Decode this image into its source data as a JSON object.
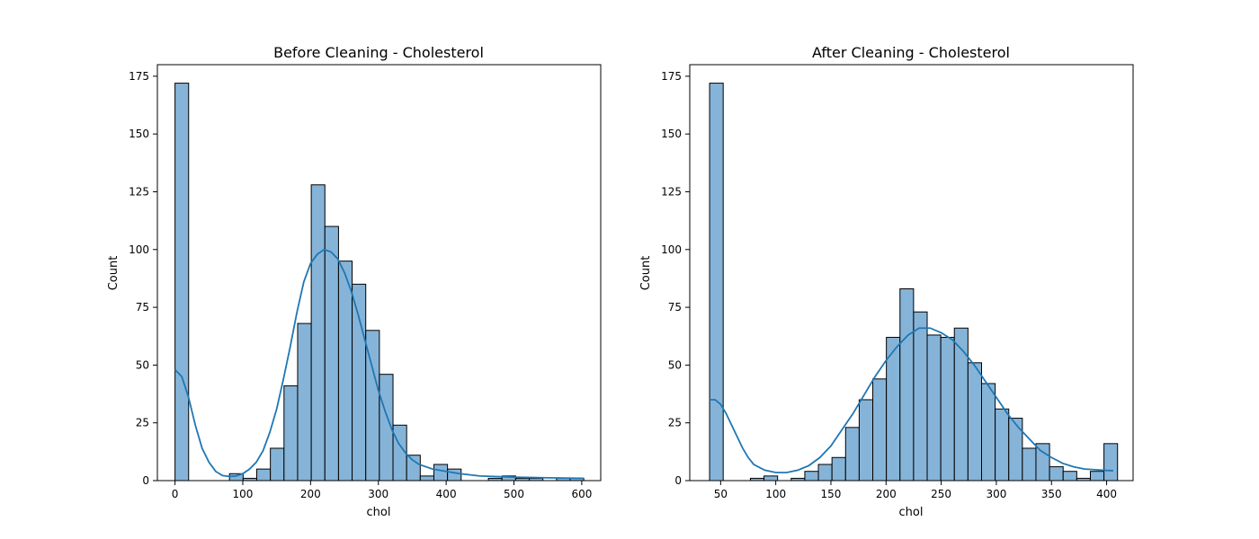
{
  "chart_data": [
    {
      "type": "bar",
      "title": "Before Cleaning - Cholesterol",
      "xlabel": "chol",
      "ylabel": "Count",
      "xlim": [
        -26,
        628
      ],
      "ylim": [
        0,
        180
      ],
      "xticks": [
        0,
        100,
        200,
        300,
        400,
        500,
        600
      ],
      "yticks": [
        0,
        25,
        50,
        75,
        100,
        125,
        150,
        175
      ],
      "bin_width": 20.1,
      "bin_edges_start": 0,
      "counts": [
        172,
        0,
        0,
        0,
        3,
        1,
        5,
        14,
        41,
        68,
        128,
        110,
        95,
        85,
        65,
        46,
        24,
        11,
        2,
        7,
        5,
        0,
        0,
        1,
        2,
        1,
        1,
        0,
        1,
        1
      ],
      "kde": {
        "x": [
          0,
          10,
          20,
          30,
          40,
          50,
          60,
          70,
          80,
          90,
          100,
          110,
          120,
          130,
          140,
          150,
          160,
          170,
          180,
          190,
          200,
          210,
          220,
          230,
          240,
          250,
          260,
          270,
          280,
          290,
          300,
          310,
          320,
          330,
          340,
          350,
          360,
          380,
          400,
          420,
          450,
          500,
          550,
          603
        ],
        "y": [
          48,
          45,
          36,
          24,
          14,
          8,
          4,
          2.2,
          1.8,
          2,
          3,
          5,
          8,
          13,
          21,
          31,
          44,
          58,
          73,
          86,
          94,
          98,
          100,
          99,
          96,
          90,
          82,
          72,
          61,
          50,
          39,
          30,
          22,
          16,
          12,
          9,
          7,
          5,
          4,
          3,
          2,
          1.5,
          1.2,
          1
        ]
      }
    },
    {
      "type": "bar",
      "title": "After Cleaning - Cholesterol",
      "xlabel": "chol",
      "ylabel": "Count",
      "xlim": [
        22,
        424
      ],
      "ylim": [
        0,
        180
      ],
      "xticks": [
        50,
        100,
        150,
        200,
        250,
        300,
        350,
        400
      ],
      "yticks": [
        0,
        25,
        50,
        75,
        100,
        125,
        150,
        175
      ],
      "bin_width": 12.33,
      "bin_edges_start": 40,
      "counts": [
        172,
        0,
        0,
        1,
        2,
        0,
        1,
        4,
        7,
        10,
        23,
        35,
        44,
        62,
        83,
        73,
        63,
        62,
        66,
        51,
        42,
        31,
        27,
        14,
        16,
        6,
        4,
        1,
        4,
        16
      ],
      "kde": {
        "x": [
          40,
          45,
          50,
          55,
          60,
          65,
          70,
          75,
          80,
          90,
          100,
          110,
          120,
          130,
          140,
          150,
          160,
          170,
          180,
          190,
          200,
          210,
          220,
          230,
          240,
          250,
          260,
          270,
          280,
          290,
          300,
          310,
          320,
          330,
          340,
          350,
          360,
          370,
          380,
          390,
          400,
          406
        ],
        "y": [
          35,
          35,
          33,
          29,
          24,
          19,
          14,
          10,
          7,
          4.5,
          3.5,
          3.5,
          4.5,
          6.5,
          10,
          15,
          22,
          29,
          37,
          45,
          52,
          58,
          63,
          66,
          66,
          64,
          61,
          56,
          50,
          43,
          36,
          29,
          23,
          18,
          13,
          10,
          7.5,
          6,
          5,
          4.7,
          4.4,
          4.3
        ]
      }
    }
  ]
}
